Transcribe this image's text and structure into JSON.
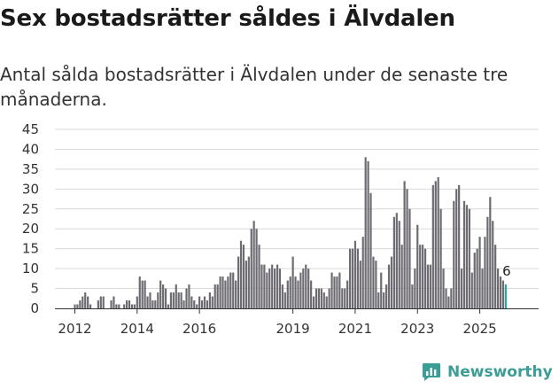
{
  "title": "Sex bostadsrätter såldes i Älvdalen",
  "subtitle": "Antal sålda bostadsrätter i Älvdalen under de senaste tre månaderna.",
  "brand": {
    "name": "Newsworthy",
    "icon": "newsworthy-bars-icon",
    "color": "#3a9e96"
  },
  "colors": {
    "bar": "#6e6c72",
    "highlight": "#2ca5a0",
    "grid": "#d9d9d9"
  },
  "chart_data": {
    "type": "bar",
    "x_start": "2012-01",
    "frequency": "monthly",
    "ylim": [
      0,
      45
    ],
    "yticks": [
      0,
      5,
      10,
      15,
      20,
      25,
      30,
      35,
      40,
      45
    ],
    "xticks": [
      "2012",
      "2014",
      "2016",
      "2019",
      "2021",
      "2023",
      "2025"
    ],
    "grid": true,
    "annotation": {
      "label": "6",
      "index": 166
    },
    "values": [
      1,
      1,
      2,
      3,
      4,
      3,
      1,
      0,
      0,
      2,
      3,
      3,
      0,
      0,
      2,
      3,
      1,
      1,
      0,
      1,
      2,
      2,
      1,
      1,
      3,
      8,
      7,
      7,
      3,
      4,
      2,
      2,
      4,
      7,
      6,
      5,
      1,
      4,
      4,
      6,
      4,
      4,
      2,
      5,
      6,
      3,
      2,
      1,
      3,
      2,
      3,
      2,
      4,
      3,
      6,
      6,
      8,
      8,
      7,
      8,
      9,
      9,
      7,
      13,
      17,
      16,
      12,
      13,
      20,
      22,
      20,
      16,
      11,
      11,
      9,
      10,
      11,
      10,
      11,
      10,
      6,
      4,
      7,
      8,
      13,
      8,
      7,
      9,
      10,
      11,
      10,
      7,
      3,
      5,
      5,
      5,
      4,
      3,
      5,
      9,
      8,
      8,
      9,
      5,
      5,
      7,
      15,
      15,
      17,
      15,
      12,
      18,
      38,
      37,
      29,
      13,
      12,
      4,
      9,
      4,
      6,
      11,
      13,
      23,
      24,
      22,
      16,
      32,
      30,
      25,
      6,
      10,
      21,
      16,
      16,
      15,
      11,
      11,
      31,
      32,
      33,
      25,
      10,
      5,
      3,
      5,
      27,
      30,
      31,
      10,
      27,
      26,
      25,
      9,
      14,
      15,
      18,
      10,
      18,
      23,
      28,
      22,
      16,
      10,
      8,
      7,
      6
    ]
  }
}
